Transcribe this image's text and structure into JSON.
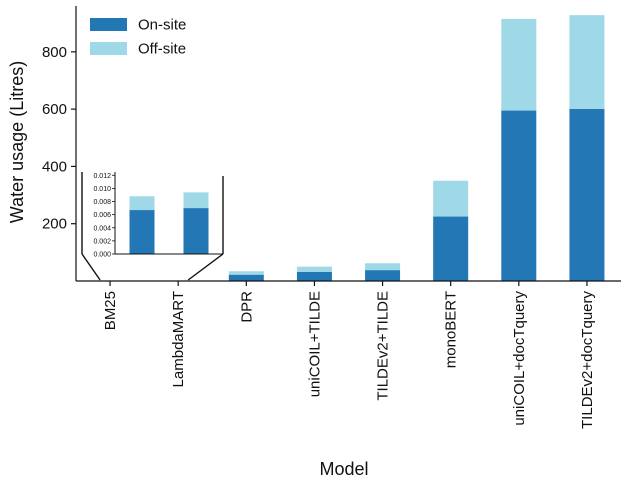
{
  "chart_data": {
    "type": "bar",
    "stacked": true,
    "title": "",
    "xlabel": "Model",
    "ylabel": "Water usage (Litres)",
    "categories": [
      "BM25",
      "LambdaMART",
      "DPR",
      "uniCOIL+TILDE",
      "TILDEv2+TILDE",
      "monoBERT",
      "uniCOIL+docTquery",
      "TILDEv2+docTquery"
    ],
    "series": [
      {
        "name": "On-site",
        "color": "#2377b4",
        "values": [
          0.0067,
          0.007,
          22,
          32,
          38,
          225,
          595,
          601
        ]
      },
      {
        "name": "Off-site",
        "color": "#9fd8e6",
        "values": [
          0.0021,
          0.0024,
          12,
          18,
          24,
          125,
          320,
          327
        ]
      }
    ],
    "ylim": [
      0,
      960
    ],
    "yticks": [
      200,
      400,
      600,
      800
    ],
    "grid": false,
    "legend": "top-left",
    "inset": {
      "categories": [
        "BM25",
        "LambdaMART"
      ],
      "ylim": [
        0,
        0.0125
      ],
      "yticks": [
        "0.000",
        "0.002",
        "0.004",
        "0.006",
        "0.008",
        "0.010",
        "0.012"
      ]
    }
  }
}
